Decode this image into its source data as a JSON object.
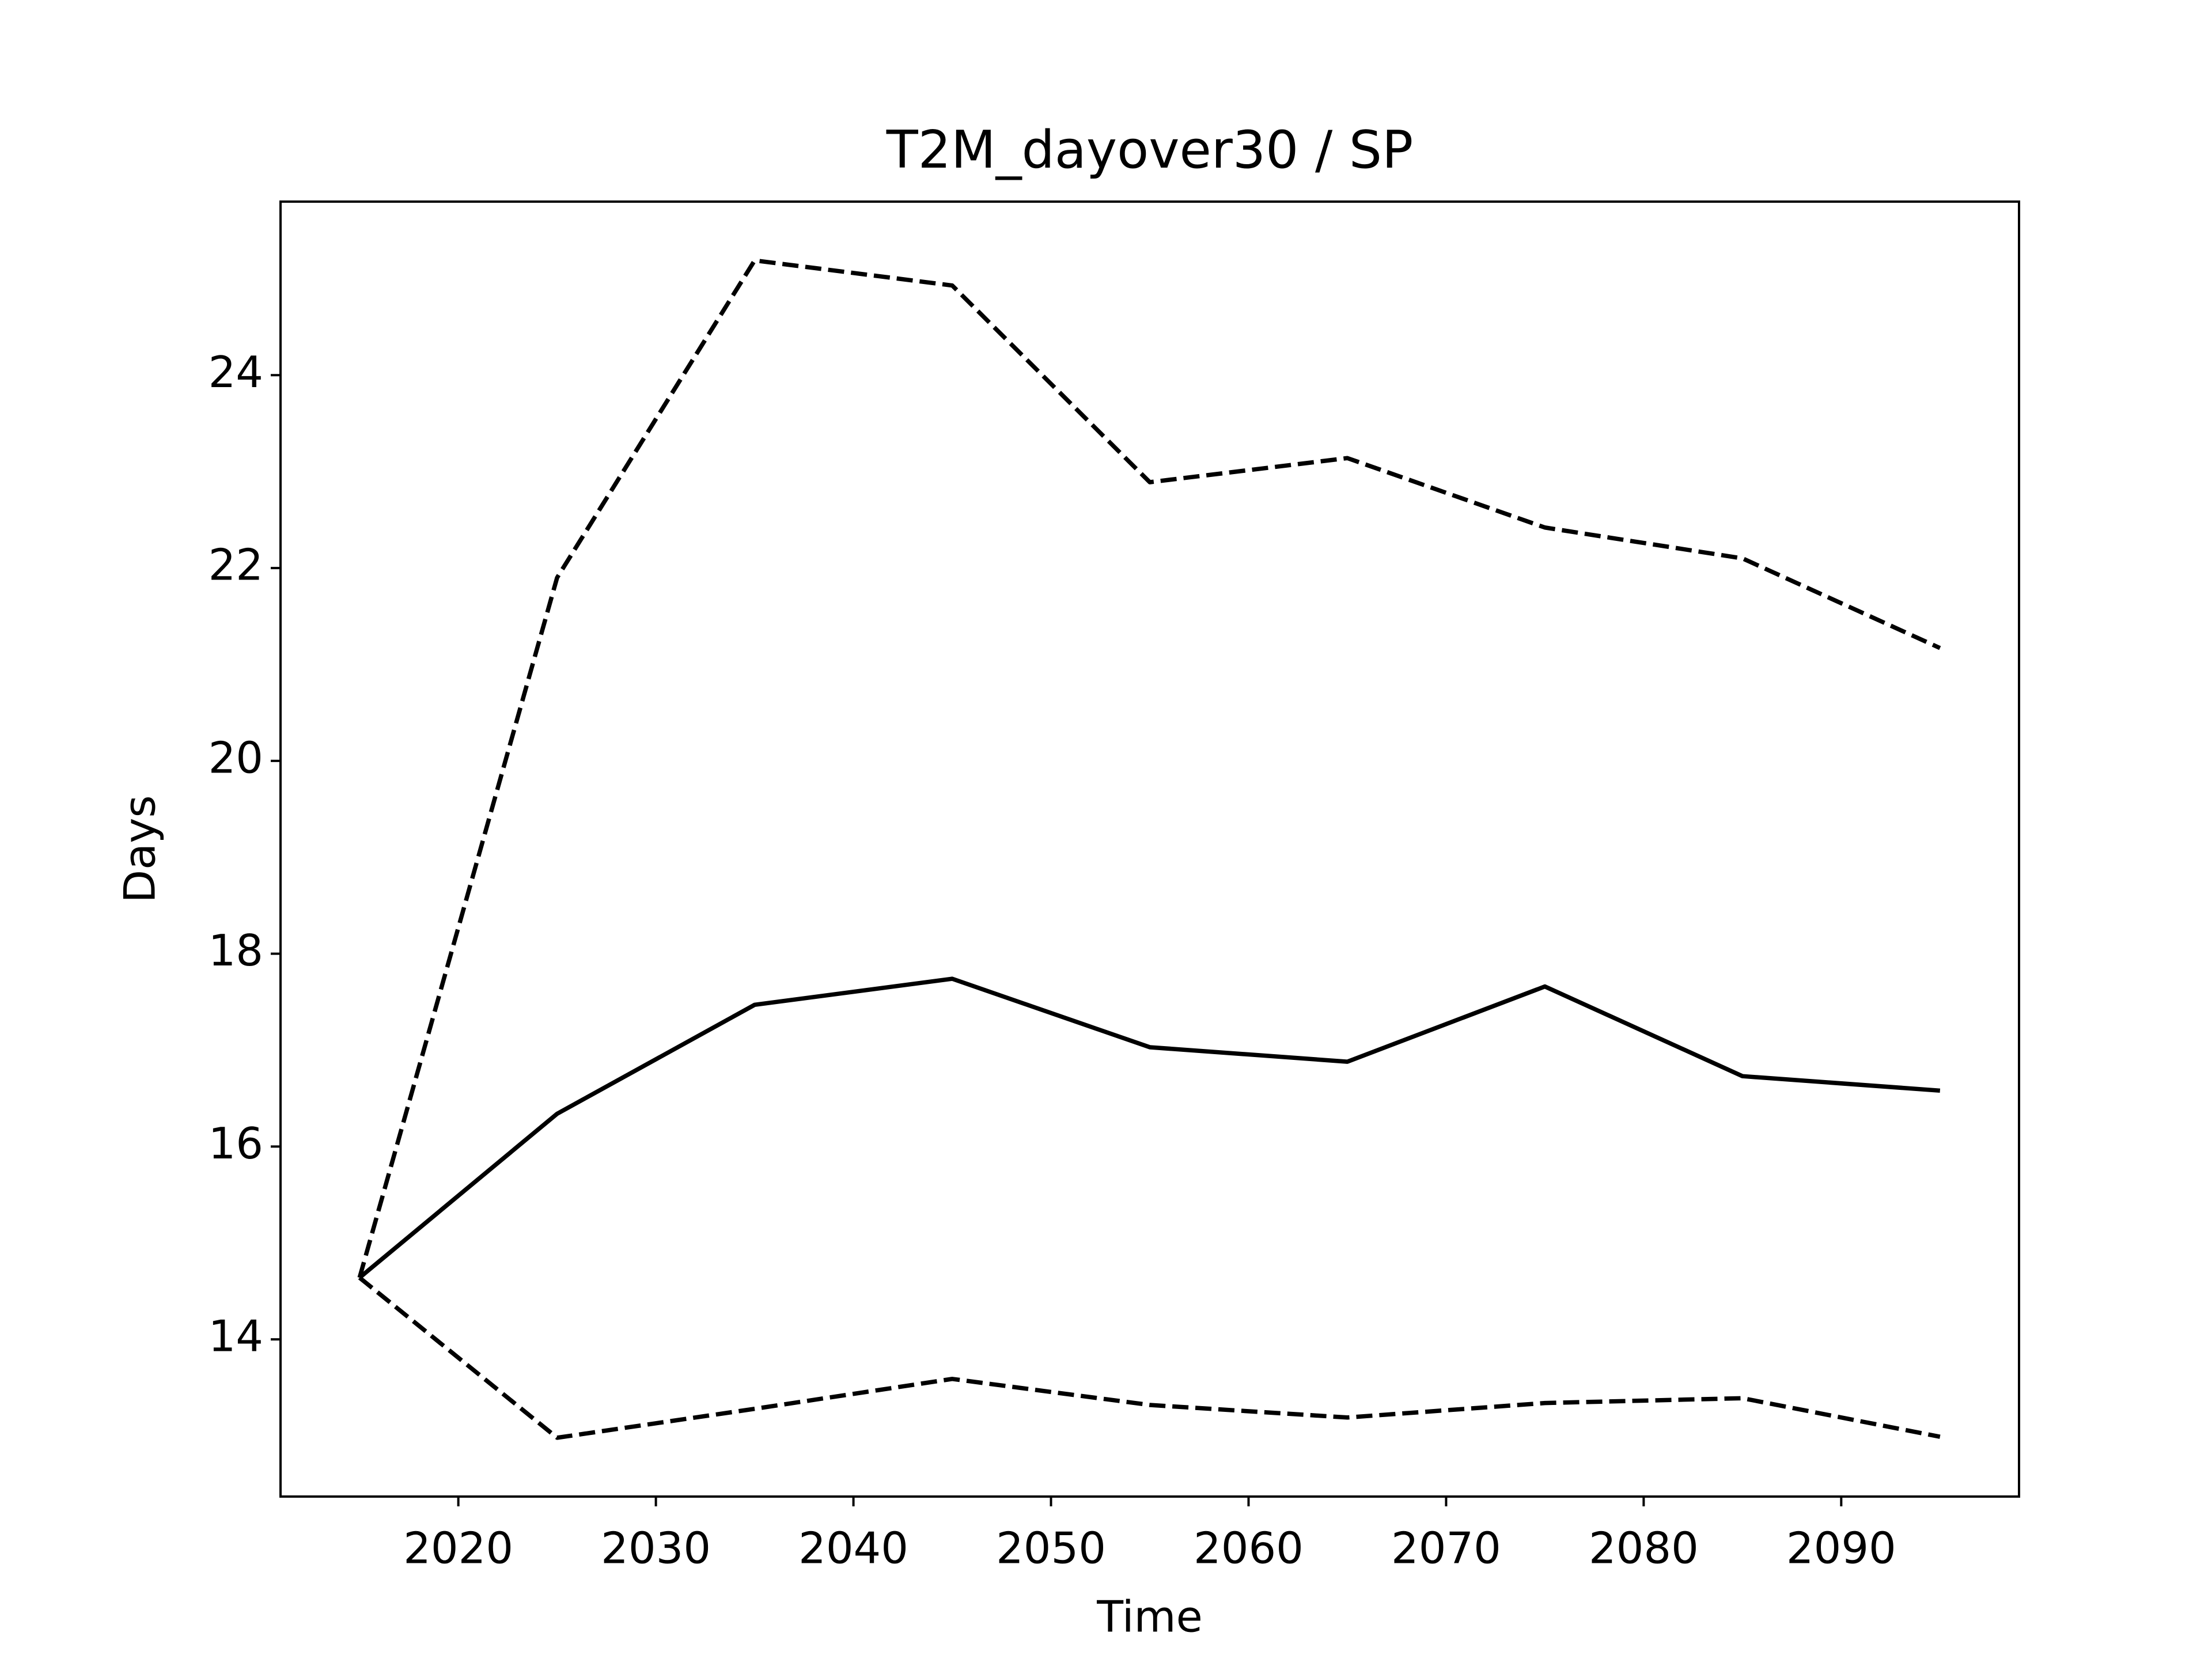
{
  "chart_data": {
    "type": "line",
    "title": "T2M_dayover30 / SP",
    "x_label": "Time",
    "y_label": "Days",
    "x": [
      2015,
      2025,
      2035,
      2045,
      2055,
      2065,
      2075,
      2085,
      2095
    ],
    "series": [
      {
        "color": "#000000",
        "dash": "solid",
        "values": [
          14.64,
          16.34,
          17.47,
          17.74,
          17.03,
          16.88,
          17.66,
          16.73,
          16.58
        ]
      },
      {
        "color": "#000000",
        "dash": "dashed",
        "values": [
          14.64,
          21.9,
          25.19,
          24.93,
          22.89,
          23.14,
          22.42,
          22.1,
          21.17
        ]
      },
      {
        "color": "#000000",
        "dash": "dashed",
        "values": [
          14.64,
          12.98,
          13.28,
          13.59,
          13.32,
          13.19,
          13.34,
          13.39,
          12.99
        ]
      }
    ],
    "xlim": [
      2011,
      2099
    ],
    "ylim": [
      12.37,
      25.8
    ],
    "xticks": [
      2020,
      2030,
      2040,
      2050,
      2060,
      2070,
      2080,
      2090
    ],
    "yticks": [
      14,
      16,
      18,
      20,
      22,
      24
    ],
    "grid": false
  }
}
